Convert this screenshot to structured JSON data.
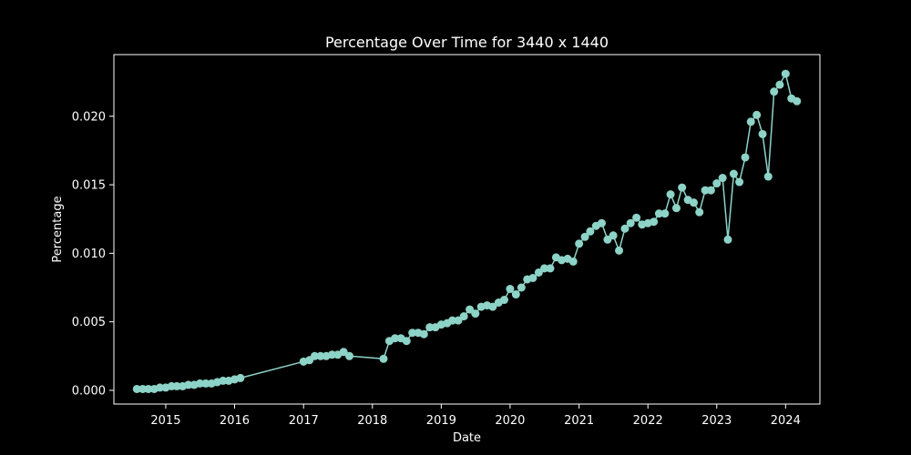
{
  "chart_data": {
    "type": "line",
    "title": "Percentage Over Time for 3440 x 1440",
    "xlabel": "Date",
    "ylabel": "Percentage",
    "x_axis_type": "date",
    "xlim": [
      "2014-04-01",
      "2024-07-01"
    ],
    "ylim": [
      -0.001,
      0.0245
    ],
    "grid": false,
    "legend": "none",
    "x_ticks": [
      {
        "date": "2015-01-01",
        "label": "2015"
      },
      {
        "date": "2016-01-01",
        "label": "2016"
      },
      {
        "date": "2017-01-01",
        "label": "2017"
      },
      {
        "date": "2018-01-01",
        "label": "2018"
      },
      {
        "date": "2019-01-01",
        "label": "2019"
      },
      {
        "date": "2020-01-01",
        "label": "2020"
      },
      {
        "date": "2021-01-01",
        "label": "2021"
      },
      {
        "date": "2022-01-01",
        "label": "2022"
      },
      {
        "date": "2023-01-01",
        "label": "2023"
      },
      {
        "date": "2024-01-01",
        "label": "2024"
      }
    ],
    "y_ticks": [
      {
        "value": 0.0,
        "label": "0.000"
      },
      {
        "value": 0.005,
        "label": "0.005"
      },
      {
        "value": 0.01,
        "label": "0.010"
      },
      {
        "value": 0.015,
        "label": "0.015"
      },
      {
        "value": 0.02,
        "label": "0.020"
      }
    ],
    "colors": {
      "series": "#8dd3c7",
      "axes": "#ffffff",
      "background": "#000000"
    },
    "series": [
      {
        "points": [
          [
            "2014-08-01",
            0.0001
          ],
          [
            "2014-09-01",
            0.0001
          ],
          [
            "2014-10-01",
            0.0001
          ],
          [
            "2014-11-01",
            0.0001
          ],
          [
            "2014-12-01",
            0.0002
          ],
          [
            "2015-01-01",
            0.0002
          ],
          [
            "2015-02-01",
            0.0003
          ],
          [
            "2015-03-01",
            0.0003
          ],
          [
            "2015-04-01",
            0.0003
          ],
          [
            "2015-05-01",
            0.0004
          ],
          [
            "2015-06-01",
            0.0004
          ],
          [
            "2015-07-01",
            0.0005
          ],
          [
            "2015-08-01",
            0.0005
          ],
          [
            "2015-09-01",
            0.0005
          ],
          [
            "2015-10-01",
            0.0006
          ],
          [
            "2015-11-01",
            0.0007
          ],
          [
            "2015-12-01",
            0.0007
          ],
          [
            "2016-01-01",
            0.0008
          ],
          [
            "2016-02-01",
            0.0009
          ],
          [
            "2017-01-01",
            0.0021
          ],
          [
            "2017-02-01",
            0.0022
          ],
          [
            "2017-03-01",
            0.0025
          ],
          [
            "2017-04-01",
            0.0025
          ],
          [
            "2017-05-01",
            0.0025
          ],
          [
            "2017-06-01",
            0.0026
          ],
          [
            "2017-07-01",
            0.0026
          ],
          [
            "2017-08-01",
            0.0028
          ],
          [
            "2017-09-01",
            0.0025
          ],
          [
            "2018-03-01",
            0.0023
          ],
          [
            "2018-04-01",
            0.0036
          ],
          [
            "2018-05-01",
            0.0038
          ],
          [
            "2018-06-01",
            0.0038
          ],
          [
            "2018-07-01",
            0.0036
          ],
          [
            "2018-08-01",
            0.0042
          ],
          [
            "2018-09-01",
            0.0042
          ],
          [
            "2018-10-01",
            0.0041
          ],
          [
            "2018-11-01",
            0.0046
          ],
          [
            "2018-12-01",
            0.0046
          ],
          [
            "2019-01-01",
            0.0048
          ],
          [
            "2019-02-01",
            0.0049
          ],
          [
            "2019-03-01",
            0.0051
          ],
          [
            "2019-04-01",
            0.0051
          ],
          [
            "2019-05-01",
            0.0054
          ],
          [
            "2019-06-01",
            0.0059
          ],
          [
            "2019-07-01",
            0.0056
          ],
          [
            "2019-08-01",
            0.0061
          ],
          [
            "2019-09-01",
            0.0062
          ],
          [
            "2019-10-01",
            0.0061
          ],
          [
            "2019-11-01",
            0.0064
          ],
          [
            "2019-12-01",
            0.0066
          ],
          [
            "2020-01-01",
            0.0074
          ],
          [
            "2020-02-01",
            0.007
          ],
          [
            "2020-03-01",
            0.0075
          ],
          [
            "2020-04-01",
            0.0081
          ],
          [
            "2020-05-01",
            0.0082
          ],
          [
            "2020-06-01",
            0.0086
          ],
          [
            "2020-07-01",
            0.0089
          ],
          [
            "2020-08-01",
            0.0089
          ],
          [
            "2020-09-01",
            0.0097
          ],
          [
            "2020-10-01",
            0.0095
          ],
          [
            "2020-11-01",
            0.0096
          ],
          [
            "2020-12-01",
            0.0094
          ],
          [
            "2021-01-01",
            0.0107
          ],
          [
            "2021-02-01",
            0.0112
          ],
          [
            "2021-03-01",
            0.0116
          ],
          [
            "2021-04-01",
            0.012
          ],
          [
            "2021-05-01",
            0.0122
          ],
          [
            "2021-06-01",
            0.011
          ],
          [
            "2021-07-01",
            0.0113
          ],
          [
            "2021-08-01",
            0.0102
          ],
          [
            "2021-09-01",
            0.0118
          ],
          [
            "2021-10-01",
            0.0122
          ],
          [
            "2021-11-01",
            0.0126
          ],
          [
            "2021-12-01",
            0.0121
          ],
          [
            "2022-01-01",
            0.0122
          ],
          [
            "2022-02-01",
            0.0123
          ],
          [
            "2022-03-01",
            0.0129
          ],
          [
            "2022-04-01",
            0.0129
          ],
          [
            "2022-05-01",
            0.0143
          ],
          [
            "2022-06-01",
            0.0133
          ],
          [
            "2022-07-01",
            0.0148
          ],
          [
            "2022-08-01",
            0.0139
          ],
          [
            "2022-09-01",
            0.0137
          ],
          [
            "2022-10-01",
            0.013
          ],
          [
            "2022-11-01",
            0.0146
          ],
          [
            "2022-12-01",
            0.0146
          ],
          [
            "2023-01-01",
            0.0151
          ],
          [
            "2023-02-01",
            0.0155
          ],
          [
            "2023-03-01",
            0.011
          ],
          [
            "2023-04-01",
            0.0158
          ],
          [
            "2023-05-01",
            0.0152
          ],
          [
            "2023-06-01",
            0.017
          ],
          [
            "2023-07-01",
            0.0196
          ],
          [
            "2023-08-01",
            0.0201
          ],
          [
            "2023-09-01",
            0.0187
          ],
          [
            "2023-10-01",
            0.0156
          ],
          [
            "2023-11-01",
            0.0218
          ],
          [
            "2023-12-01",
            0.0223
          ],
          [
            "2024-01-01",
            0.0231
          ],
          [
            "2024-02-01",
            0.0213
          ],
          [
            "2024-03-01",
            0.0211
          ]
        ]
      }
    ]
  }
}
